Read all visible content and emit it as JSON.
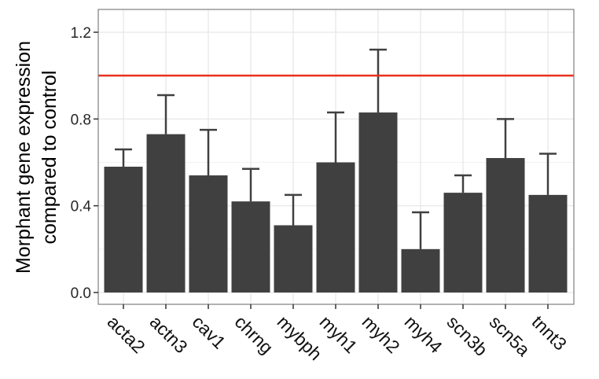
{
  "chart_data": {
    "type": "bar",
    "title": "",
    "xlabel": "",
    "ylabel": "Morphant gene expression\ncompared to control",
    "ylabel_lines": [
      "Morphant gene expression",
      "compared to control"
    ],
    "categories": [
      "acta2",
      "actn3",
      "cav1",
      "chrng",
      "mybph",
      "myh1",
      "myh2",
      "myh4",
      "scn3b",
      "scn5a",
      "tnnt3"
    ],
    "values": [
      0.58,
      0.73,
      0.54,
      0.42,
      0.31,
      0.6,
      0.83,
      0.2,
      0.46,
      0.62,
      0.45
    ],
    "error_upper": [
      0.66,
      0.91,
      0.75,
      0.57,
      0.45,
      0.83,
      1.12,
      0.37,
      0.54,
      0.8,
      0.64
    ],
    "yticks": [
      0.0,
      0.4,
      0.8,
      1.2
    ],
    "ytick_labels": [
      "0.0",
      "0.4",
      "0.8",
      "1.2"
    ],
    "ylim": [
      -0.05,
      1.31
    ],
    "reference_line": 1.0,
    "grid": true,
    "legend": "none",
    "colors": {
      "bar": "#404040",
      "error_bar": "#404040",
      "reference_line": "#e8321e",
      "grid_major": "#e6e6e6",
      "grid_minor": "#f2f2f2",
      "panel_border": "#7f7f7f"
    }
  }
}
